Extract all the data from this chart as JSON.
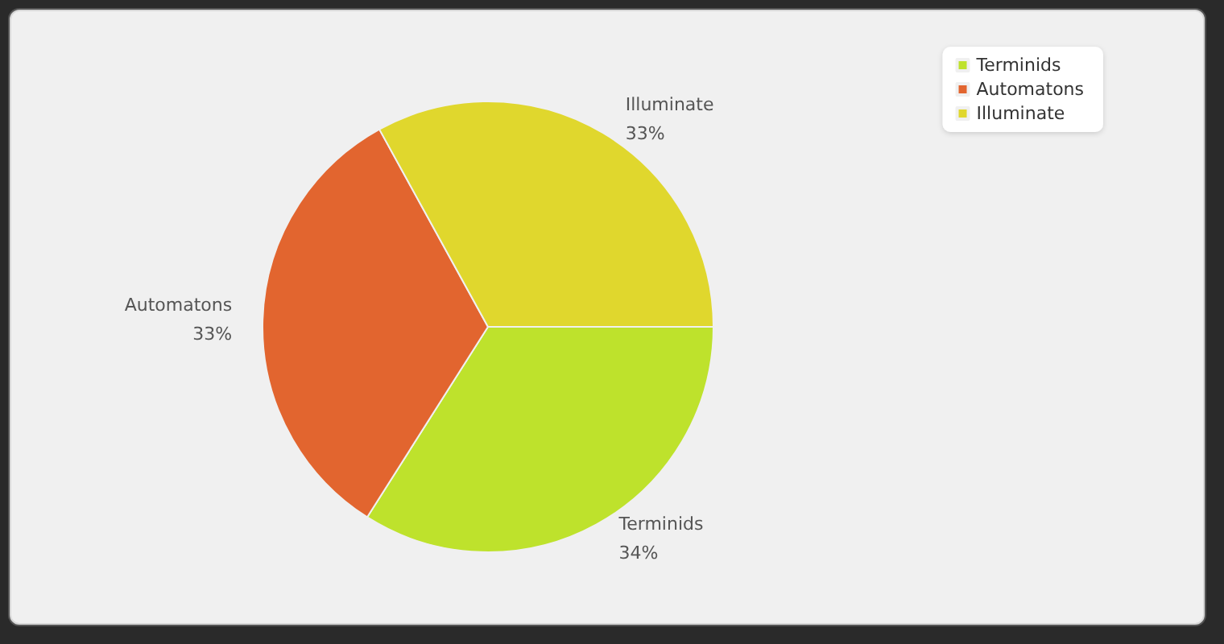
{
  "chart_data": {
    "type": "pie",
    "categories": [
      "Terminids",
      "Automatons",
      "Illuminate"
    ],
    "values": [
      34,
      33,
      33
    ],
    "colors": [
      "#bee22c",
      "#e2652f",
      "#e0d72d"
    ],
    "value_labels": [
      "34%",
      "33%",
      "33%"
    ],
    "legend": "top right"
  }
}
